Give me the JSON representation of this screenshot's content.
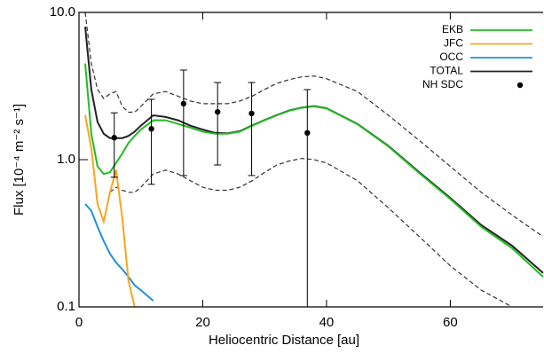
{
  "chart_data": {
    "type": "line",
    "xlabel": "Heliocentric Distance [au]",
    "ylabel": "Flux [10⁻⁴ m⁻² s⁻¹]",
    "log_y": true,
    "xlim": [
      0,
      75
    ],
    "xticks": [
      0,
      20,
      40,
      60
    ],
    "ylim": [
      0.1,
      10
    ],
    "yticks": [
      0.1,
      {
        "value": 1,
        "label": "1.0"
      },
      {
        "value": 10,
        "label": "10.0"
      }
    ],
    "legend": "upper right",
    "x": [
      1,
      2,
      3,
      4,
      5,
      6,
      7,
      8,
      9,
      10,
      12,
      14,
      16,
      18,
      20,
      22,
      24,
      26,
      28,
      30,
      32,
      34,
      36,
      38,
      40,
      45,
      50,
      55,
      60,
      65,
      70,
      75
    ],
    "series": [
      {
        "color": "#333333",
        "style": "dashed",
        "values": [
          10,
          4.5,
          3,
          2.6,
          2.8,
          2.9,
          2.3,
          2.1,
          2.1,
          2.3,
          2.8,
          2.9,
          2.7,
          2.5,
          2.4,
          2.4,
          2.4,
          2.5,
          2.7,
          3.0,
          3.3,
          3.5,
          3.65,
          3.7,
          3.55,
          2.9,
          2.0,
          1.35,
          0.9,
          0.6,
          0.42,
          0.3
        ]
      },
      {
        "color": "#333333",
        "style": "dashed",
        "values": [
          null,
          null,
          null,
          null,
          0.6,
          0.65,
          0.62,
          0.6,
          0.6,
          0.65,
          0.8,
          0.85,
          0.8,
          0.72,
          0.65,
          0.62,
          0.62,
          0.65,
          0.72,
          0.82,
          0.92,
          0.98,
          1.02,
          1.0,
          0.95,
          0.72,
          0.47,
          0.3,
          0.19,
          0.13,
          0.1,
          null
        ]
      },
      {
        "name": "TOTAL",
        "color": "#222222",
        "values": [
          8,
          3,
          1.8,
          1.5,
          1.4,
          1.4,
          1.4,
          1.45,
          1.55,
          1.7,
          2.0,
          1.95,
          1.85,
          1.7,
          1.6,
          1.52,
          1.51,
          1.56,
          1.71,
          1.86,
          2.01,
          2.16,
          2.26,
          2.31,
          2.24,
          1.75,
          1.24,
          0.82,
          0.55,
          0.36,
          0.26,
          0.17
        ]
      },
      {
        "name": "OCC",
        "color": "#1e90e0",
        "values": [
          0.5,
          0.45,
          0.35,
          0.28,
          0.23,
          0.2,
          0.18,
          0.16,
          0.14,
          0.13,
          0.11,
          null,
          null,
          null,
          null,
          null,
          null,
          null,
          null,
          null,
          null,
          null,
          null,
          null,
          null,
          null,
          null,
          null,
          null,
          null,
          null,
          null
        ]
      },
      {
        "name": "JFC",
        "color": "#f5a623",
        "values": [
          2.0,
          1.2,
          0.5,
          0.38,
          0.6,
          0.85,
          0.4,
          0.15,
          0.1,
          null,
          null,
          null,
          null,
          null,
          null,
          null,
          null,
          null,
          null,
          null,
          null,
          null,
          null,
          null,
          null,
          null,
          null,
          null,
          null,
          null,
          null,
          null
        ]
      },
      {
        "name": "EKB",
        "color": "#22bb22",
        "values": [
          4.5,
          1.5,
          0.9,
          0.8,
          0.82,
          0.95,
          1.1,
          1.3,
          1.45,
          1.6,
          1.85,
          1.85,
          1.75,
          1.65,
          1.55,
          1.5,
          1.5,
          1.55,
          1.7,
          1.85,
          2.0,
          2.15,
          2.25,
          2.3,
          2.23,
          1.74,
          1.23,
          0.81,
          0.54,
          0.35,
          0.25,
          0.16
        ]
      }
    ],
    "points": {
      "name": "NH SDC",
      "color": "#000000",
      "x": [
        5.7,
        11.7,
        16.9,
        22.4,
        27.9,
        36.9
      ],
      "values": [
        1.41,
        1.62,
        2.4,
        2.11,
        2.06,
        1.52
      ],
      "low": [
        0.76,
        0.68,
        0.78,
        0.92,
        0.78,
        0.1
      ],
      "high": [
        2.08,
        2.57,
        4.06,
        3.34,
        3.34,
        2.99
      ]
    }
  }
}
